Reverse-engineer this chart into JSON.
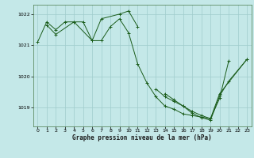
{
  "title": "Graphe pression niveau de la mer (hPa)",
  "background_color": "#c4e8e8",
  "grid_color": "#a0cccc",
  "line_color": "#1a5c1a",
  "xlim": [
    -0.5,
    23.5
  ],
  "ylim": [
    1018.4,
    1022.3
  ],
  "yticks": [
    1019,
    1020,
    1021,
    1022
  ],
  "xticks": [
    0,
    1,
    2,
    3,
    4,
    5,
    6,
    7,
    8,
    9,
    10,
    11,
    12,
    13,
    14,
    15,
    16,
    17,
    18,
    19,
    20,
    21,
    22,
    23
  ],
  "series": [
    {
      "x": [
        0,
        1,
        2,
        3,
        4,
        5,
        6,
        7,
        8,
        9,
        10,
        11,
        12,
        13,
        14,
        15,
        16,
        17,
        18,
        19,
        20,
        21
      ],
      "y": [
        1021.1,
        1021.75,
        1021.5,
        1021.75,
        1021.75,
        1021.75,
        1021.15,
        1021.15,
        1021.6,
        1021.85,
        1021.4,
        1020.4,
        1019.8,
        1019.35,
        1019.05,
        1018.95,
        1018.8,
        1018.75,
        1018.7,
        1018.65,
        1019.3,
        1020.5
      ]
    },
    {
      "x": [
        1,
        2,
        4,
        6,
        7,
        9,
        10,
        11
      ],
      "y": [
        1021.65,
        1021.35,
        1021.75,
        1021.15,
        1021.85,
        1022.0,
        1022.1,
        1021.6
      ]
    },
    {
      "x": [
        14,
        15,
        16,
        17,
        18,
        19,
        20,
        23
      ],
      "y": [
        1019.45,
        1019.25,
        1019.05,
        1018.88,
        1018.75,
        1018.65,
        1019.45,
        1020.55
      ]
    },
    {
      "x": [
        13,
        14,
        15,
        16,
        17,
        18,
        19,
        20,
        21,
        23
      ],
      "y": [
        1019.6,
        1019.35,
        1019.2,
        1019.05,
        1018.82,
        1018.68,
        1018.6,
        1019.38,
        1019.85,
        1020.55
      ]
    }
  ]
}
